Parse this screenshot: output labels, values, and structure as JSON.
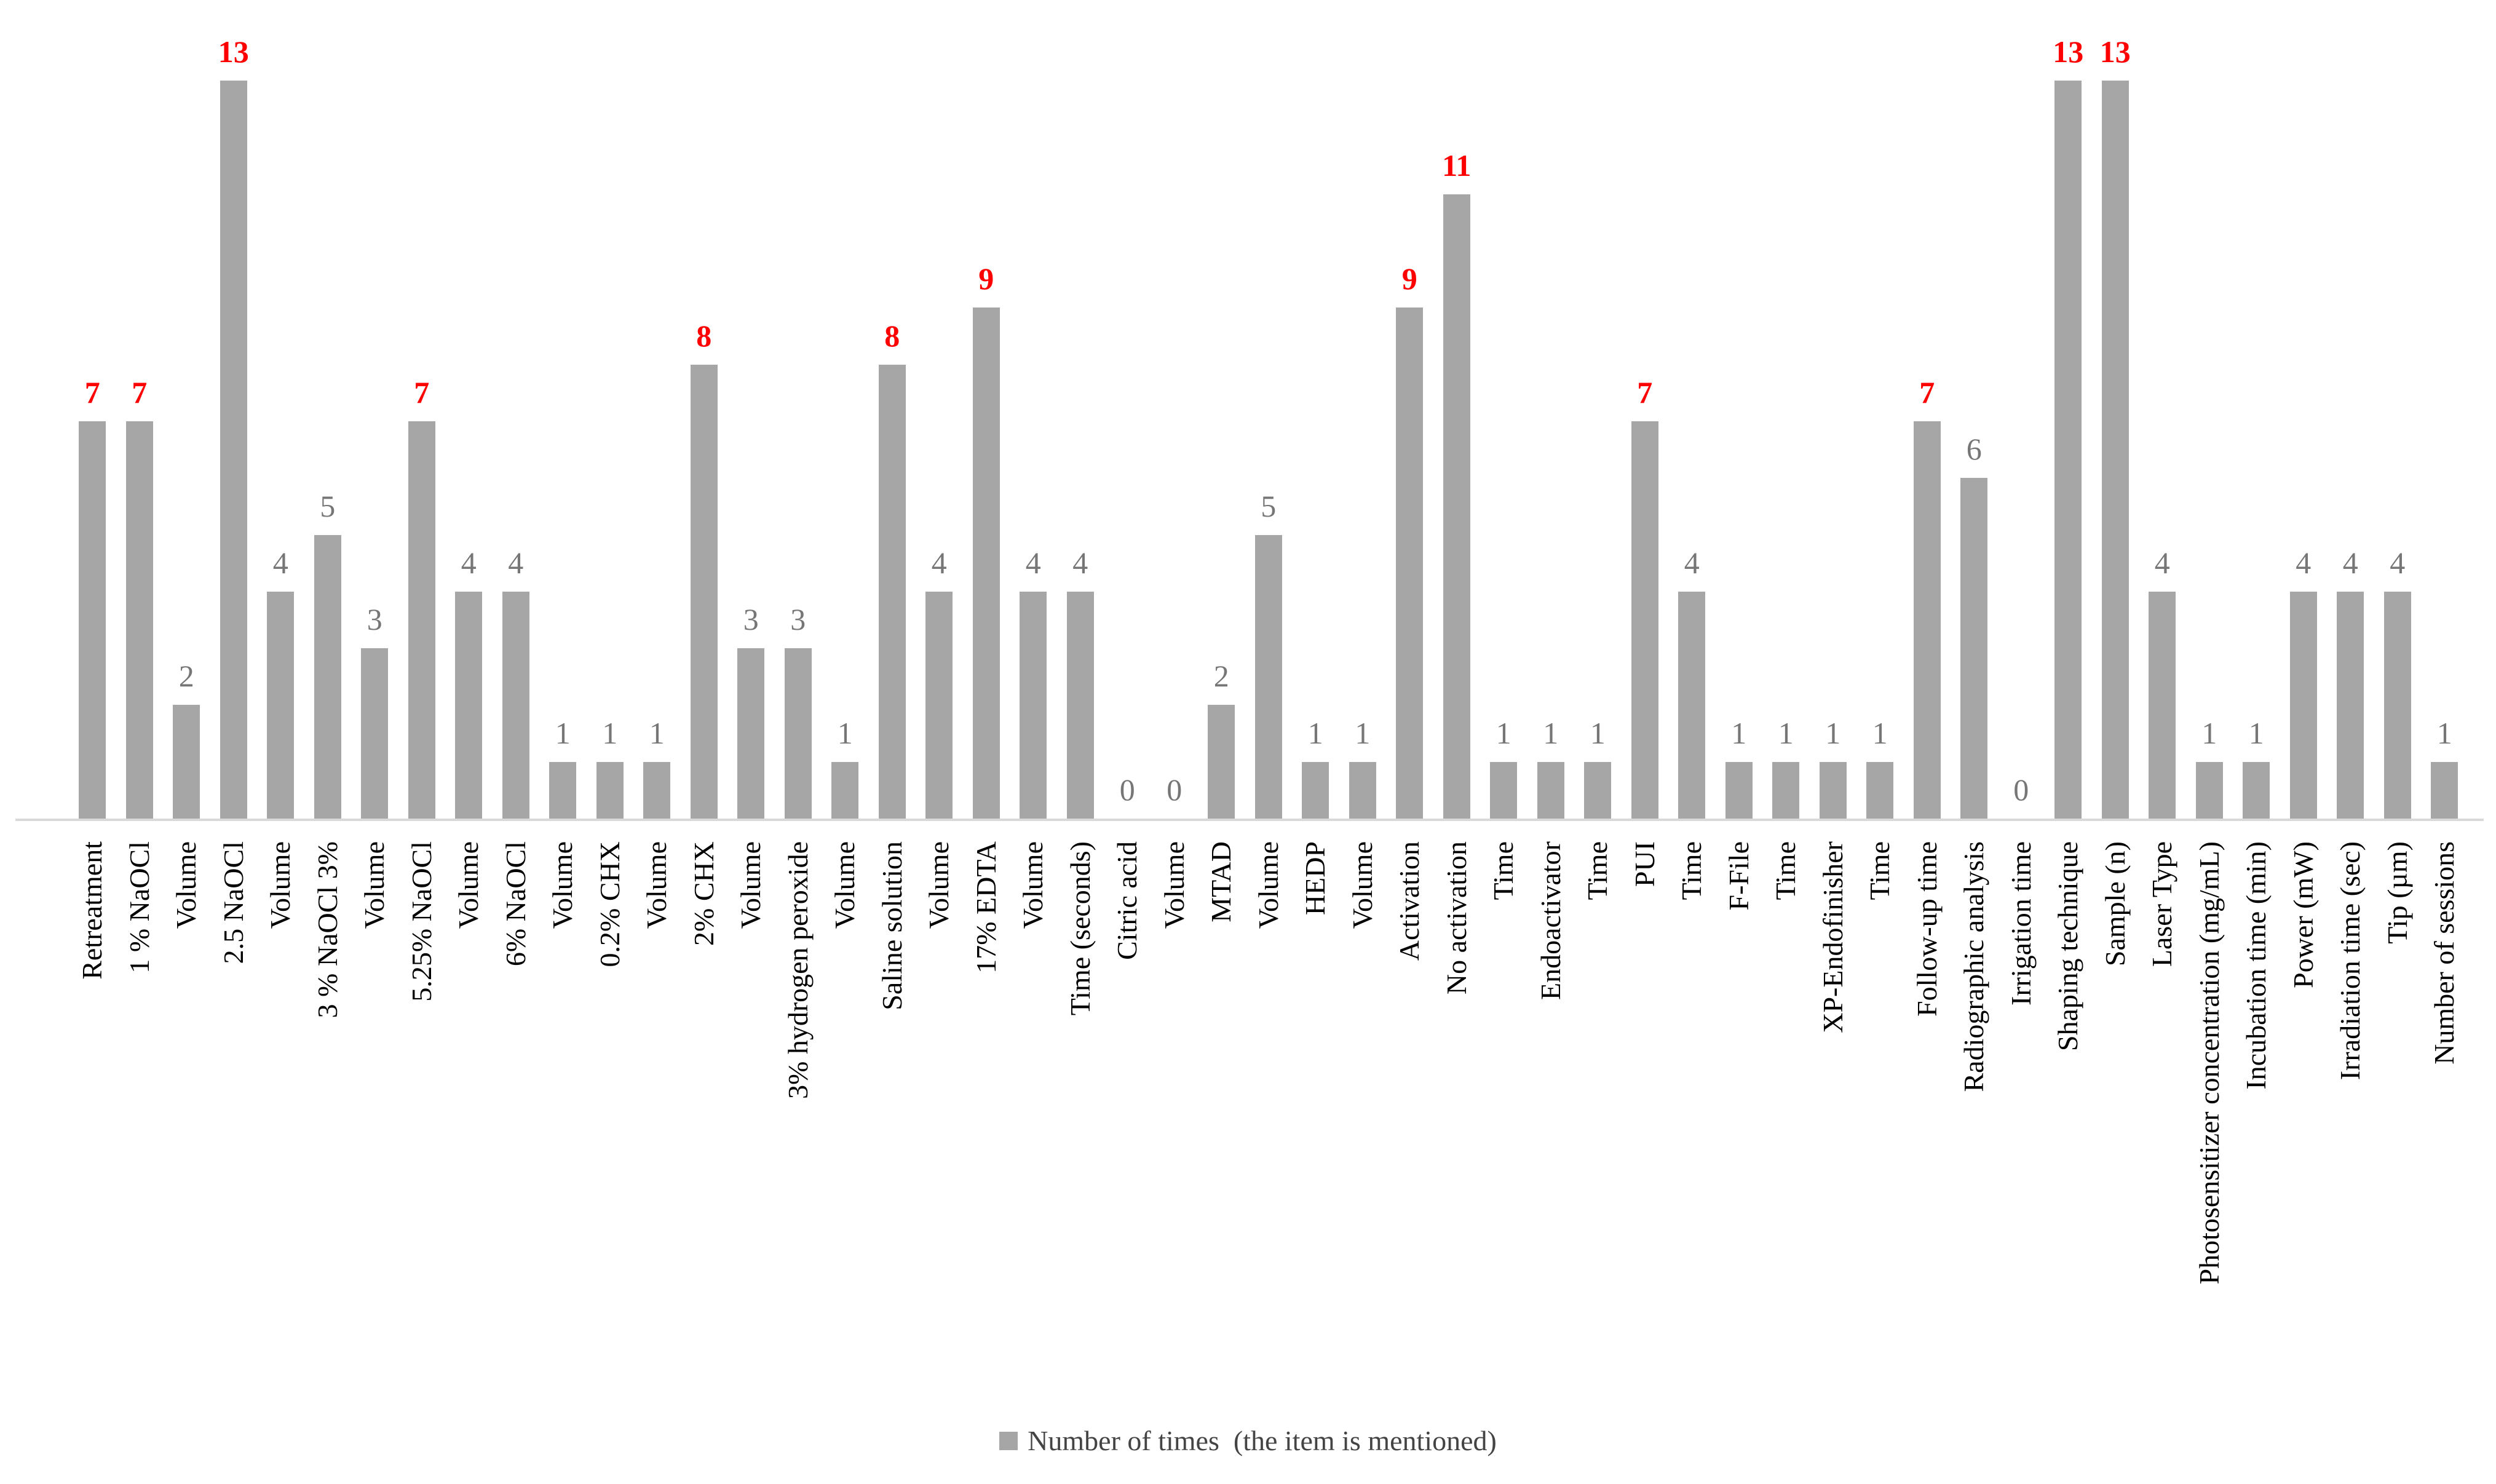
{
  "chart_data": {
    "type": "bar",
    "title": "",
    "xlabel": "",
    "ylabel": "",
    "ylim": [
      0,
      13
    ],
    "grid": false,
    "legend_position": "bottom-center",
    "legend_label": "Number of times  (the item is mentioned)",
    "colors": {
      "bar": "#A6A6A6",
      "axis_line": "#D9D9D9",
      "value_label": "#767676",
      "value_label_highlight": "#FF0000",
      "category_label": "#000000",
      "legend_text": "#444444",
      "background": "#FFFFFF"
    },
    "items": [
      {
        "label": "Retreatment",
        "value": 7,
        "highlight": true
      },
      {
        "label": "1 % NaOCl",
        "value": 7,
        "highlight": true
      },
      {
        "label": "Volume",
        "value": 2,
        "highlight": false
      },
      {
        "label": "2.5 NaOCl",
        "value": 13,
        "highlight": true
      },
      {
        "label": "Volume",
        "value": 4,
        "highlight": false
      },
      {
        "label": "3 % NaOCl 3%",
        "value": 5,
        "highlight": false
      },
      {
        "label": "Volume",
        "value": 3,
        "highlight": false
      },
      {
        "label": "5.25% NaOCl",
        "value": 7,
        "highlight": true
      },
      {
        "label": "Volume",
        "value": 4,
        "highlight": false
      },
      {
        "label": "6% NaOCl",
        "value": 4,
        "highlight": false
      },
      {
        "label": "Volume",
        "value": 1,
        "highlight": false
      },
      {
        "label": "0.2% CHX",
        "value": 1,
        "highlight": false
      },
      {
        "label": "Volume",
        "value": 1,
        "highlight": false
      },
      {
        "label": "2% CHX",
        "value": 8,
        "highlight": true
      },
      {
        "label": "Volume",
        "value": 3,
        "highlight": false
      },
      {
        "label": "3% hydrogen peroxide",
        "value": 3,
        "highlight": false
      },
      {
        "label": "Volume",
        "value": 1,
        "highlight": false
      },
      {
        "label": "Saline solution",
        "value": 8,
        "highlight": true
      },
      {
        "label": "Volume",
        "value": 4,
        "highlight": false
      },
      {
        "label": "17% EDTA",
        "value": 9,
        "highlight": true
      },
      {
        "label": "Volume",
        "value": 4,
        "highlight": false
      },
      {
        "label": "Time (seconds)",
        "value": 4,
        "highlight": false
      },
      {
        "label": "Citric acid",
        "value": 0,
        "highlight": false
      },
      {
        "label": "Volume",
        "value": 0,
        "highlight": false
      },
      {
        "label": "MTAD",
        "value": 2,
        "highlight": false
      },
      {
        "label": "Volume",
        "value": 5,
        "highlight": false
      },
      {
        "label": "HEDP",
        "value": 1,
        "highlight": false
      },
      {
        "label": "Volume",
        "value": 1,
        "highlight": false
      },
      {
        "label": "Activation",
        "value": 9,
        "highlight": true
      },
      {
        "label": "No activation",
        "value": 11,
        "highlight": true
      },
      {
        "label": "Time",
        "value": 1,
        "highlight": false
      },
      {
        "label": "Endoactivator",
        "value": 1,
        "highlight": false
      },
      {
        "label": "Time",
        "value": 1,
        "highlight": false
      },
      {
        "label": "PUI",
        "value": 7,
        "highlight": true
      },
      {
        "label": "Time",
        "value": 4,
        "highlight": false
      },
      {
        "label": "F-File",
        "value": 1,
        "highlight": false
      },
      {
        "label": "Time",
        "value": 1,
        "highlight": false
      },
      {
        "label": "XP-Endofinisher",
        "value": 1,
        "highlight": false
      },
      {
        "label": "Time",
        "value": 1,
        "highlight": false
      },
      {
        "label": "Follow-up time",
        "value": 7,
        "highlight": true
      },
      {
        "label": "Radiographic analysis",
        "value": 6,
        "highlight": false
      },
      {
        "label": "Irrigation time",
        "value": 0,
        "highlight": false
      },
      {
        "label": "Shaping technique",
        "value": 13,
        "highlight": true
      },
      {
        "label": "Sample (n)",
        "value": 13,
        "highlight": true
      },
      {
        "label": "Laser Type",
        "value": 4,
        "highlight": false
      },
      {
        "label": "Photosensitizer concentration (mg/mL)",
        "value": 1,
        "highlight": false
      },
      {
        "label": "Incubation time (min)",
        "value": 1,
        "highlight": false
      },
      {
        "label": "Power (mW)",
        "value": 4,
        "highlight": false
      },
      {
        "label": "Irradiation time (sec)",
        "value": 4,
        "highlight": false
      },
      {
        "label": "Tip (µm)",
        "value": 4,
        "highlight": false
      },
      {
        "label": "Number of sessions",
        "value": 1,
        "highlight": false
      }
    ]
  }
}
